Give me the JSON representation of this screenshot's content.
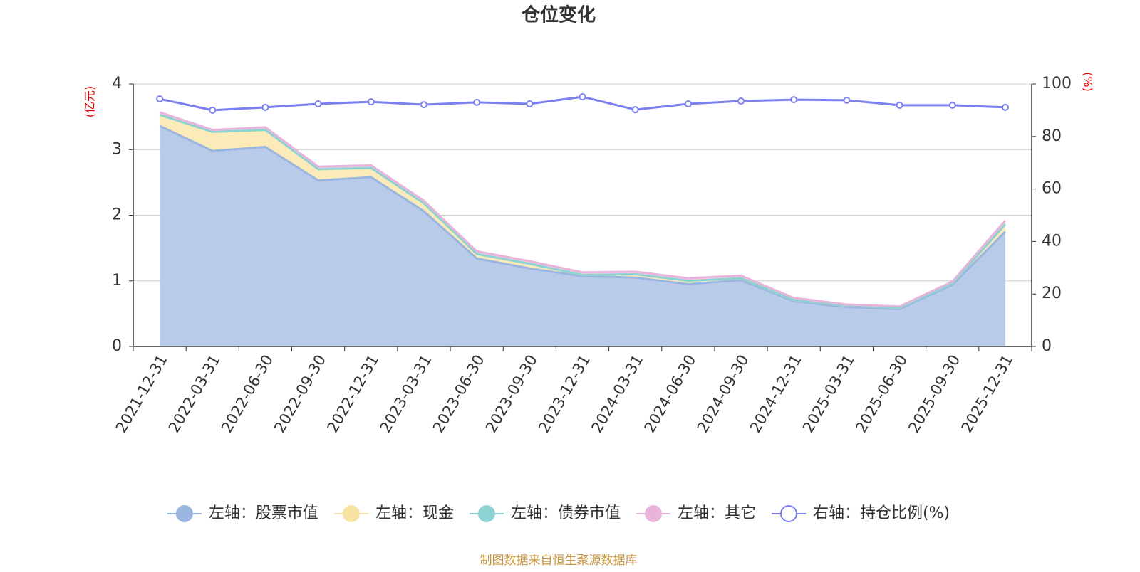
{
  "chart_data": {
    "type": "stacked-area-line",
    "title": "仓位变化",
    "y_label": "(亿元)",
    "y2_label": "(%)",
    "source": "制图数据来自恒生聚源数据库",
    "categories": [
      "2021-12-31",
      "2022-03-31",
      "2022-06-30",
      "2022-09-30",
      "2022-12-31",
      "2023-03-31",
      "2023-06-30",
      "2023-09-30",
      "2023-12-31",
      "2024-03-31",
      "2024-06-30",
      "2024-09-30",
      "2024-12-31",
      "2025-03-31",
      "2025-06-30",
      "2025-09-30",
      "2025-12-31"
    ],
    "series": [
      {
        "name": "左轴：股票市值",
        "color": "#9ab5e0",
        "fill": "#b8cbe9",
        "values": [
          3.36,
          2.98,
          3.04,
          2.53,
          2.58,
          2.06,
          1.34,
          1.19,
          1.07,
          1.05,
          0.95,
          1.01,
          0.69,
          0.6,
          0.57,
          0.94,
          1.75
        ]
      },
      {
        "name": "左轴：现金",
        "color": "#f7e3a1",
        "fill": "#faebb8",
        "values": [
          0.17,
          0.29,
          0.26,
          0.17,
          0.14,
          0.12,
          0.07,
          0.07,
          0.02,
          0.05,
          0.05,
          0.03,
          0.02,
          0.02,
          0.02,
          0.02,
          0.11
        ]
      },
      {
        "name": "左轴：债券市值",
        "color": "#8dd3d3",
        "fill": "#a9dede",
        "values": [
          0,
          0,
          0,
          0,
          0,
          0,
          0,
          0,
          0,
          0,
          0,
          0,
          0,
          0,
          0,
          0,
          0
        ]
      },
      {
        "name": "左轴：其它",
        "color": "#e8b4dc",
        "fill": "#f0cce8",
        "values": [
          0.04,
          0.03,
          0.04,
          0.04,
          0.04,
          0.04,
          0.04,
          0.04,
          0.04,
          0.04,
          0.04,
          0.04,
          0.03,
          0.02,
          0.02,
          0.03,
          0.06
        ]
      },
      {
        "name": "右轴：持仓比例(%)",
        "color": "#7b7ff0",
        "axis": "y2",
        "values": [
          94.3,
          90.0,
          91.1,
          92.4,
          93.2,
          92.1,
          93.0,
          92.4,
          95.1,
          90.2,
          92.4,
          93.5,
          94.0,
          93.8,
          91.9,
          91.9,
          91.1
        ]
      }
    ],
    "ylim": [
      0,
      4
    ],
    "yticks": [
      0,
      1,
      2,
      3,
      4
    ],
    "y2lim": [
      0,
      100
    ],
    "y2ticks": [
      0,
      20,
      40,
      60,
      80,
      100
    ],
    "grid": true
  }
}
